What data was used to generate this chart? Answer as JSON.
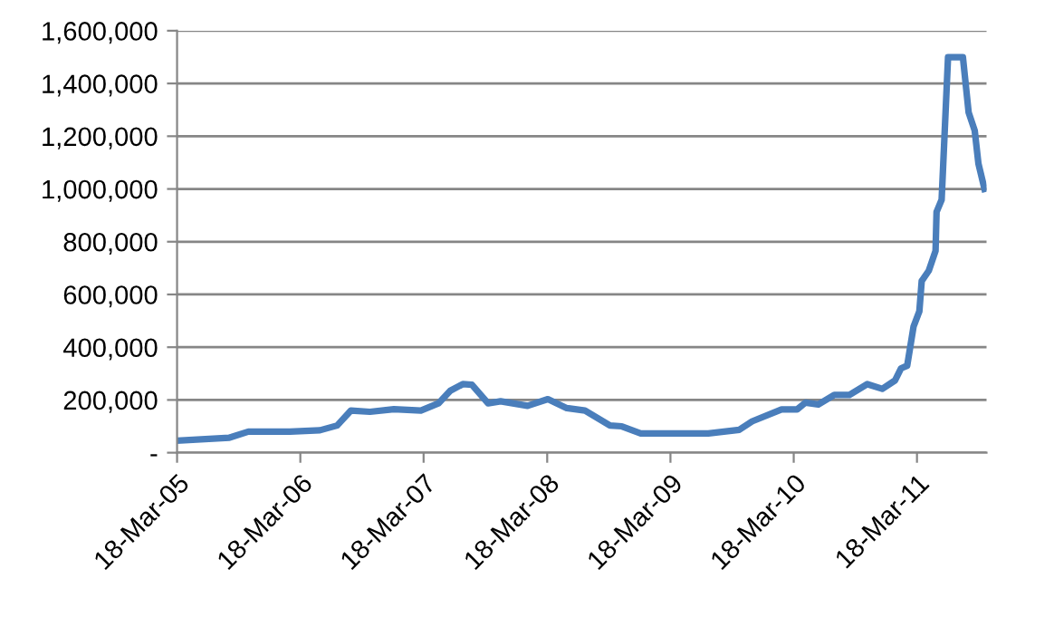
{
  "chart_data": {
    "type": "line",
    "x": [
      "2005-03-18",
      "2005-08-20",
      "2005-10-15",
      "2006-02-15",
      "2006-05-15",
      "2006-07-05",
      "2006-08-15",
      "2006-10-10",
      "2006-12-20",
      "2007-03-10",
      "2007-05-01",
      "2007-06-05",
      "2007-07-12",
      "2007-08-08",
      "2007-09-25",
      "2007-11-01",
      "2008-01-20",
      "2008-03-20",
      "2008-05-15",
      "2008-07-08",
      "2008-09-20",
      "2008-10-25",
      "2008-12-20",
      "2009-07-08",
      "2009-10-08",
      "2009-11-15",
      "2010-02-10",
      "2010-03-28",
      "2010-04-22",
      "2010-05-30",
      "2010-07-16",
      "2010-08-30",
      "2010-10-22",
      "2010-12-05",
      "2011-01-12",
      "2011-01-30",
      "2011-02-17",
      "2011-03-08",
      "2011-03-25",
      "2011-04-01",
      "2011-04-22",
      "2011-05-12",
      "2011-05-15",
      "2011-05-30",
      "2011-06-18",
      "2011-08-01",
      "2011-08-18",
      "2011-09-05",
      "2011-09-16",
      "2011-10-04"
    ],
    "series": [
      {
        "color": "#4a7ebb",
        "values": [
          46000,
          57000,
          80000,
          80000,
          85000,
          103000,
          160000,
          155000,
          165000,
          160000,
          187000,
          235000,
          260000,
          258000,
          187000,
          195000,
          178000,
          203000,
          169000,
          160000,
          103000,
          100000,
          73000,
          73000,
          87000,
          119000,
          164000,
          164000,
          190000,
          183000,
          219000,
          219000,
          260000,
          242000,
          274000,
          320000,
          330000,
          479000,
          536000,
          651000,
          690000,
          765000,
          913000,
          959000,
          1500000,
          1500000,
          1290000,
          1221000,
          1096000,
          1000000
        ]
      }
    ],
    "xlim": [
      "2005-03-18",
      "2011-10-10"
    ],
    "xticks": [
      {
        "value": "2005-03-18",
        "label": "18-Mar-05"
      },
      {
        "value": "2006-03-18",
        "label": "18-Mar-06"
      },
      {
        "value": "2007-03-18",
        "label": "18-Mar-07"
      },
      {
        "value": "2008-03-18",
        "label": "18-Mar-08"
      },
      {
        "value": "2009-03-18",
        "label": "18-Mar-09"
      },
      {
        "value": "2010-03-18",
        "label": "18-Mar-10"
      },
      {
        "value": "2011-03-18",
        "label": "18-Mar-11"
      }
    ],
    "ylim": [
      0,
      1600000
    ],
    "yticks": [
      {
        "value": 0,
        "label": "-"
      },
      {
        "value": 200000,
        "label": "200,000"
      },
      {
        "value": 400000,
        "label": "400,000"
      },
      {
        "value": 600000,
        "label": "600,000"
      },
      {
        "value": 800000,
        "label": "800,000"
      },
      {
        "value": 1000000,
        "label": "1,000,000"
      },
      {
        "value": 1200000,
        "label": "1,200,000"
      },
      {
        "value": 1400000,
        "label": "1,400,000"
      },
      {
        "value": 1600000,
        "label": "1,600,000"
      }
    ],
    "grid": "y",
    "marker": "none",
    "line_style": "solid",
    "legend": false
  }
}
